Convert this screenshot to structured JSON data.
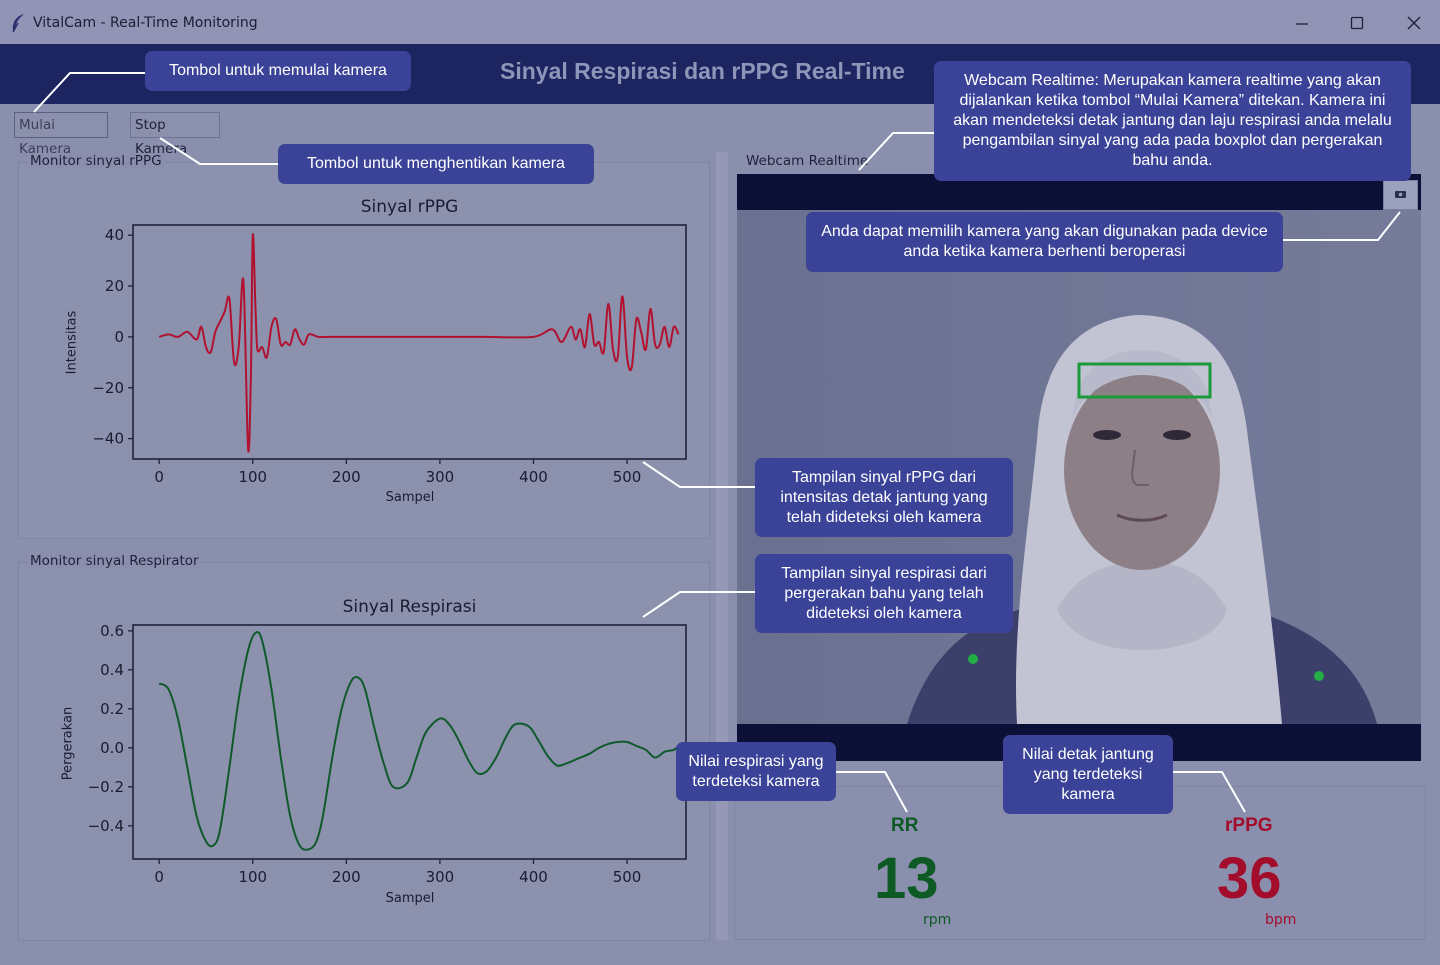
{
  "window": {
    "title": "VitalCam - Real-Time Monitoring",
    "controls": [
      "minimize-icon",
      "maximize-icon",
      "close-icon"
    ]
  },
  "header": {
    "title": "Sinyal Respirasi dan rPPG Real-Time"
  },
  "toolbar": {
    "start_label": "Mulai Kamera",
    "stop_label": "Stop Kamera"
  },
  "rppg_panel": {
    "label": "Monitor sinyal rPPG"
  },
  "resp_panel": {
    "label": "Monitor sinyal Respirator"
  },
  "webcam_panel": {
    "label": "Webcam Realtime",
    "camera_select_icon": "camera-select-icon"
  },
  "metrics": {
    "rr": {
      "title": "RR",
      "value": "13",
      "unit": "rpm",
      "color": "#0d5a24"
    },
    "rppg": {
      "title": "rPPG",
      "value": "36",
      "unit": "bpm",
      "color": "#a30c2a"
    }
  },
  "callouts": {
    "start": "Tombol untuk memulai kamera",
    "stop": "Tombol untuk menghentikan kamera",
    "webcam": "Webcam Realtime: Merupakan kamera realtime yang akan dijalankan ketika tombol “Mulai Kamera” ditekan. Kamera ini akan mendeteksi detak jantung dan laju respirasi anda melalu pengambilan sinyal yang ada pada boxplot dan pergerakan bahu anda.",
    "camera_select": "Anda dapat memilih kamera yang akan digunakan pada device anda ketika kamera berhenti beroperasi",
    "rppg_chart": "Tampilan sinyal rPPG dari intensitas detak jantung yang telah dideteksi oleh kamera",
    "resp_chart": "Tampilan sinyal respirasi dari pergerakan bahu yang telah dideteksi oleh kamera",
    "rr_value": "Nilai respirasi yang terdeteksi kamera",
    "rppg_value": "Nilai detak jantung yang terdeteksi kamera"
  },
  "colors": {
    "accent": "#3a4398",
    "header_band": "#1c2560",
    "rppg_line": "#b0122f",
    "resp_line": "#0f5a2a",
    "roi_box": "#1a9a3a",
    "landmark": "#22b046"
  },
  "chart_data": [
    {
      "type": "line",
      "title": "Sinyal rPPG",
      "xlabel": "Sampel",
      "ylabel": "Intensitas",
      "xlim": [
        -28,
        563
      ],
      "ylim": [
        -48,
        44
      ],
      "xticks": [
        0,
        100,
        200,
        300,
        400,
        500
      ],
      "yticks": [
        40,
        20,
        0,
        -20,
        -40
      ],
      "xtick_labels": [
        "0",
        "100",
        "200",
        "300",
        "400",
        "500"
      ],
      "ytick_labels": [
        "40",
        "20",
        "0",
        "−20",
        "−40"
      ],
      "series": [
        {
          "color": "#b0122f",
          "x": [
            0,
            10,
            20,
            30,
            40,
            45,
            50,
            55,
            60,
            65,
            70,
            75,
            80,
            85,
            90,
            95,
            98,
            100,
            103,
            105,
            110,
            115,
            120,
            125,
            130,
            135,
            140,
            145,
            150,
            155,
            160,
            170,
            180,
            190,
            200,
            220,
            250,
            300,
            350,
            400,
            420,
            430,
            440,
            445,
            450,
            455,
            460,
            465,
            470,
            475,
            480,
            485,
            490,
            495,
            500,
            505,
            510,
            515,
            520,
            525,
            530,
            535,
            540,
            545,
            550,
            555
          ],
          "y": [
            0,
            1,
            0,
            2,
            -1,
            4,
            -4,
            -6,
            2,
            6,
            10,
            15,
            -10,
            -4,
            22,
            -44,
            -15,
            40,
            10,
            -5,
            -4,
            -8,
            4,
            7,
            -3,
            -2,
            -3,
            3,
            -1,
            -3,
            1,
            0,
            0,
            0,
            0,
            0,
            0,
            0,
            0,
            0,
            3,
            -2,
            4,
            -1,
            3,
            -4,
            9,
            -3,
            -2,
            -6,
            13,
            -5,
            -8,
            16,
            -8,
            -12,
            7,
            2,
            -5,
            11,
            -3,
            -3,
            4,
            -4,
            4,
            1
          ]
        }
      ]
    },
    {
      "type": "line",
      "title": "Sinyal Respirasi",
      "xlabel": "Sampel",
      "ylabel": "Pergerakan",
      "xlim": [
        -28,
        563
      ],
      "ylim": [
        -0.57,
        0.63
      ],
      "xticks": [
        0,
        100,
        200,
        300,
        400,
        500
      ],
      "yticks": [
        0.6,
        0.4,
        0.2,
        0.0,
        -0.2,
        -0.4
      ],
      "xtick_labels": [
        "0",
        "100",
        "200",
        "300",
        "400",
        "500"
      ],
      "ytick_labels": [
        "0.6",
        "0.4",
        "0.2",
        "0.0",
        "−0.2",
        "−0.4"
      ],
      "series": [
        {
          "color": "#0f5a2a",
          "x": [
            0,
            10,
            20,
            30,
            40,
            50,
            58,
            65,
            75,
            85,
            95,
            103,
            110,
            120,
            130,
            140,
            150,
            160,
            168,
            175,
            185,
            195,
            205,
            213,
            220,
            230,
            240,
            250,
            265,
            275,
            285,
            300,
            310,
            320,
            330,
            340,
            350,
            360,
            370,
            380,
            395,
            405,
            415,
            425,
            435,
            450,
            460,
            470,
            480,
            490,
            500,
            510,
            520,
            530,
            540,
            550,
            555
          ],
          "y": [
            0.33,
            0.3,
            0.15,
            -0.1,
            -0.35,
            -0.48,
            -0.5,
            -0.42,
            -0.1,
            0.25,
            0.5,
            0.59,
            0.55,
            0.3,
            -0.05,
            -0.35,
            -0.5,
            -0.52,
            -0.48,
            -0.35,
            -0.05,
            0.2,
            0.34,
            0.36,
            0.3,
            0.1,
            -0.08,
            -0.2,
            -0.18,
            -0.05,
            0.08,
            0.15,
            0.12,
            0.04,
            -0.06,
            -0.13,
            -0.12,
            -0.05,
            0.05,
            0.12,
            0.11,
            0.04,
            -0.04,
            -0.09,
            -0.08,
            -0.05,
            -0.03,
            0.0,
            0.02,
            0.03,
            0.03,
            0.01,
            -0.01,
            -0.05,
            -0.02,
            -0.01,
            0.01
          ]
        }
      ]
    }
  ]
}
